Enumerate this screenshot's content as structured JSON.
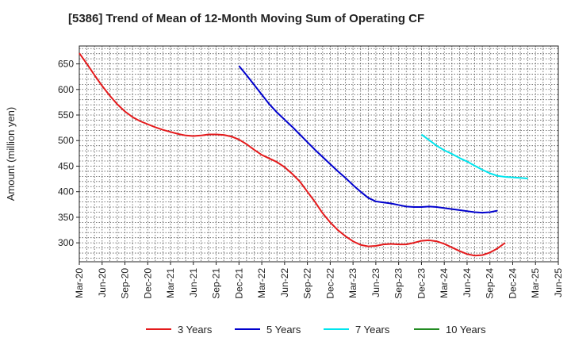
{
  "chart_data": {
    "type": "line",
    "title": "[5386]  Trend of Mean of 12-Month Moving Sum of Operating CF",
    "xlabel": "",
    "ylabel": "Amount (million yen)",
    "ylim": [
      263,
      685
    ],
    "yticks": [
      300,
      350,
      400,
      450,
      500,
      550,
      600,
      650
    ],
    "ytick_labels": [
      "300",
      "350",
      "400",
      "450",
      "500",
      "550",
      "600",
      "650"
    ],
    "x_start": "2020-03",
    "x_end": "2025-06",
    "xtick_labels": [
      "Mar-20",
      "Jun-20",
      "Sep-20",
      "Dec-20",
      "Mar-21",
      "Jun-21",
      "Sep-21",
      "Dec-21",
      "Mar-22",
      "Jun-22",
      "Sep-22",
      "Dec-22",
      "Mar-23",
      "Jun-23",
      "Sep-23",
      "Dec-23",
      "Mar-24",
      "Jun-24",
      "Sep-24",
      "Dec-24",
      "Mar-25",
      "Jun-25"
    ],
    "grid": true,
    "legend_position": "bottom",
    "series": [
      {
        "name": "3 Years",
        "color": "#e41a1c",
        "start_index": 0,
        "values": [
          671,
          650,
          628,
          607,
          588,
          571,
          557,
          546,
          538,
          532,
          526,
          521,
          517,
          513,
          510,
          509,
          510,
          512,
          512,
          511,
          508,
          502,
          493,
          482,
          472,
          465,
          458,
          448,
          435,
          420,
          400,
          380,
          358,
          340,
          325,
          313,
          303,
          296,
          293,
          294,
          297,
          298,
          297,
          297,
          300,
          304,
          305,
          303,
          298,
          291,
          284,
          278,
          275,
          276,
          281,
          289,
          300
        ]
      },
      {
        "name": "5 Years",
        "color": "#0000cd",
        "start_index": 21,
        "values": [
          646,
          628,
          609,
          590,
          571,
          555,
          541,
          527,
          512,
          497,
          482,
          468,
          454,
          440,
          427,
          413,
          400,
          388,
          381,
          379,
          377,
          374,
          371,
          370,
          370,
          371,
          370,
          368,
          366,
          364,
          362,
          360,
          359,
          360,
          363
        ]
      },
      {
        "name": "7 Years",
        "color": "#00e5ee",
        "start_index": 45,
        "values": [
          512,
          501,
          490,
          481,
          474,
          466,
          459,
          451,
          443,
          436,
          431,
          429,
          428,
          427,
          426
        ]
      },
      {
        "name": "10 Years",
        "color": "#228b22",
        "start_index": 0,
        "values": []
      }
    ]
  }
}
